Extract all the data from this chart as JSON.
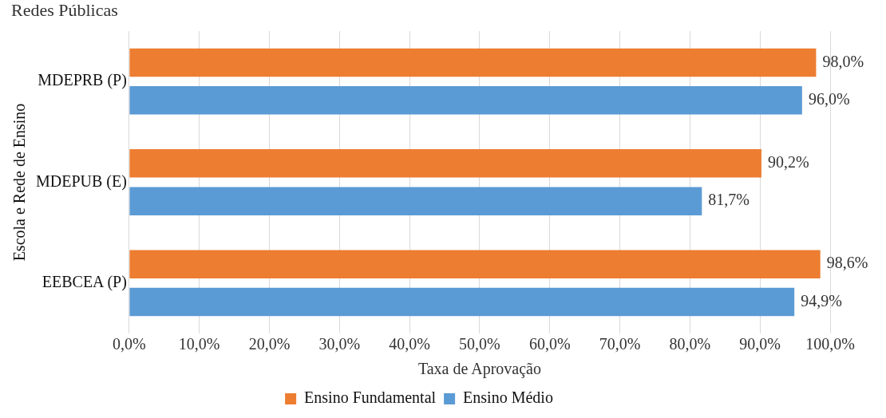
{
  "chart_data": {
    "type": "bar",
    "orientation": "horizontal",
    "title": "Redes Públicas",
    "categories": [
      "MDEPRB (P)",
      "MDEPUB (E)",
      "EEBCEA (P)"
    ],
    "series": [
      {
        "name": "Ensino Fundamental",
        "color": "#ed7d31",
        "values": [
          98.0,
          90.2,
          98.6
        ],
        "value_labels": [
          "98,0%",
          "90,2%",
          "98,6%"
        ]
      },
      {
        "name": "Ensino Médio",
        "color": "#5b9bd5",
        "values": [
          96.0,
          81.7,
          94.9
        ],
        "value_labels": [
          "96,0%",
          "81,7%",
          "94,9%"
        ]
      }
    ],
    "xlabel": "Taxa de Aprovação",
    "ylabel": "Escola e Rede de Ensino",
    "xlim": [
      0,
      100
    ],
    "xticks": [
      {
        "value": 0,
        "label": "0,0%"
      },
      {
        "value": 10,
        "label": "10,0%"
      },
      {
        "value": 20,
        "label": "20,0%"
      },
      {
        "value": 30,
        "label": "30,0%"
      },
      {
        "value": 40,
        "label": "40,0%"
      },
      {
        "value": 50,
        "label": "50,0%"
      },
      {
        "value": 60,
        "label": "60,0%"
      },
      {
        "value": 70,
        "label": "70,0%"
      },
      {
        "value": 80,
        "label": "80,0%"
      },
      {
        "value": 90,
        "label": "90,0%"
      },
      {
        "value": 100,
        "label": "100,0%"
      }
    ],
    "grid": "x",
    "legend": "bottom"
  }
}
